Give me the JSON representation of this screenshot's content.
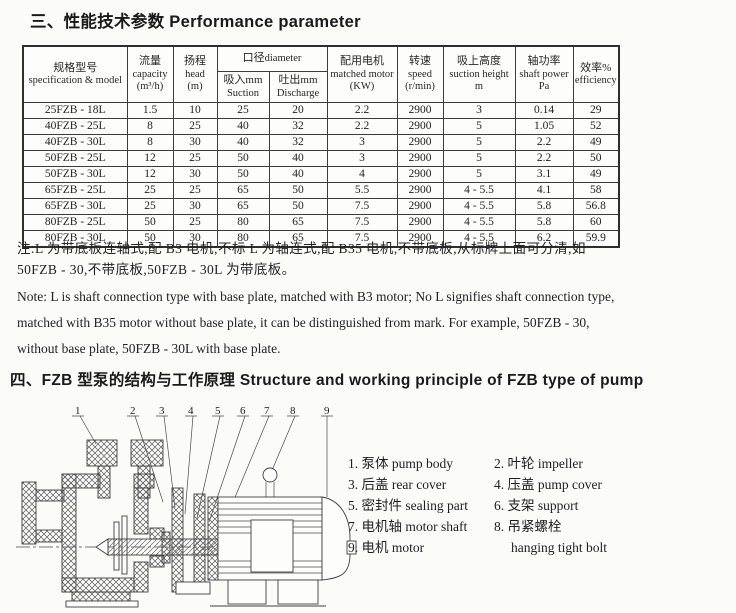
{
  "colors": {
    "paper": "#fbfbf8",
    "text": "#1f1f1f",
    "table_border": "#3c3c3c"
  },
  "section_performance": {
    "title": "三、性能技术参数 Performance parameter"
  },
  "section_structure": {
    "title": "四、FZB 型泵的结构与工作原理 Structure and working principle of FZB type of pump"
  },
  "table": {
    "header": {
      "model": {
        "zh": "规格型号",
        "en": "specification & model"
      },
      "capacity": {
        "zh": "流量",
        "en": "capacity",
        "unit": "(m³/h)"
      },
      "head": {
        "zh": "扬程",
        "en": "head",
        "unit": "(m)"
      },
      "diameter": {
        "zh": "口径",
        "en": "diameter"
      },
      "suction": {
        "zh": "吸入mm",
        "en": "Suction"
      },
      "discharge": {
        "zh": "吐出mm",
        "en": "Discharge"
      },
      "motor": {
        "zh": "配用电机",
        "en": "matched motor",
        "unit": "(KW)"
      },
      "speed": {
        "zh": "转速",
        "en": "speed",
        "unit": "(r/min)"
      },
      "suction_height": {
        "zh": "吸上高度",
        "en": "suction height",
        "unit": "m"
      },
      "shaft_power": {
        "zh": "轴功率",
        "en": "shaft power",
        "unit": "Pa"
      },
      "efficiency": {
        "zh": "效率%",
        "en": "efficiency"
      }
    },
    "rows": [
      [
        "25FZB - 18L",
        "1.5",
        "10",
        "25",
        "20",
        "2.2",
        "2900",
        "3",
        "0.14",
        "29"
      ],
      [
        "40FZB - 25L",
        "8",
        "25",
        "40",
        "32",
        "2.2",
        "2900",
        "5",
        "1.05",
        "52"
      ],
      [
        "40FZB - 30L",
        "8",
        "30",
        "40",
        "32",
        "3",
        "2900",
        "5",
        "2.2",
        "49"
      ],
      [
        "50FZB - 25L",
        "12",
        "25",
        "50",
        "40",
        "3",
        "2900",
        "5",
        "2.2",
        "50"
      ],
      [
        "50FZB - 30L",
        "12",
        "30",
        "50",
        "40",
        "4",
        "2900",
        "5",
        "3.1",
        "49"
      ],
      [
        "65FZB - 25L",
        "25",
        "25",
        "65",
        "50",
        "5.5",
        "2900",
        "4 - 5.5",
        "4.1",
        "58"
      ],
      [
        "65FZB - 30L",
        "25",
        "30",
        "65",
        "50",
        "7.5",
        "2900",
        "4 - 5.5",
        "5.8",
        "56.8"
      ],
      [
        "80FZB - 25L",
        "50",
        "25",
        "80",
        "65",
        "7.5",
        "2900",
        "4 - 5.5",
        "5.8",
        "60"
      ],
      [
        "80FZB - 30L",
        "50",
        "30",
        "80",
        "65",
        "7.5",
        "2900",
        "4 - 5.5",
        "6.2",
        "59.9"
      ]
    ]
  },
  "notes": {
    "zh_line1": "注:L 为带底板连轴式,配 B3 电机;不标 L 为轴连式,配 B35 电机,不带底板,从标牌上面可分清,如",
    "zh_line2": "50FZB - 30,不带底板,50FZB - 30L 为带底板。",
    "en_line1": "Note: L is shaft connection type with base plate, matched with B3 motor; No L signifies shaft connection type,",
    "en_line2": "matched with B35 motor without base plate, it can be distinguished from mark. For example, 50FZB - 30,",
    "en_line3": "without base plate, 50FZB - 30L with base plate."
  },
  "diagram": {
    "callouts": [
      "1",
      "2",
      "3",
      "4",
      "5",
      "6",
      "7",
      "8",
      "9"
    ]
  },
  "parts_list": {
    "rows": [
      {
        "left": "1. 泵体 pump body",
        "right": "2. 叶轮 impeller"
      },
      {
        "left": "3. 后盖 rear cover",
        "right": "4. 压盖 pump cover"
      },
      {
        "left": "5. 密封件 sealing part",
        "right": "6. 支架 support"
      },
      {
        "left": "7. 电机轴 motor shaft",
        "right": "8. 吊紧螺栓"
      },
      {
        "left": "9. 电机 motor",
        "right": "hanging tight bolt"
      }
    ]
  }
}
